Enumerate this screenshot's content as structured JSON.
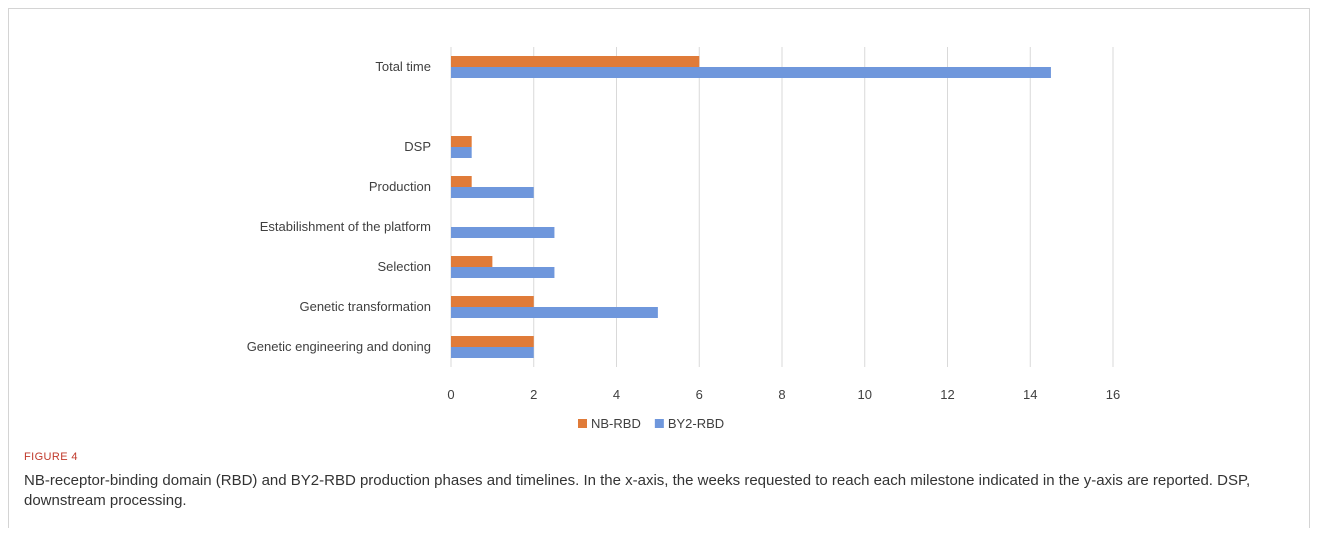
{
  "figure_label": "FIGURE 4",
  "caption": "NB-receptor-binding domain (RBD) and BY2-RBD production phases and timelines. In the x-axis, the weeks requested to reach each milestone indicated in the y-axis are reported. DSP, downstream processing.",
  "chart_data": {
    "type": "bar",
    "orientation": "horizontal",
    "categories": [
      "Total time",
      "",
      "DSP",
      "Production",
      "Estabilishment of the platform",
      "Selection",
      "Genetic transformation",
      "Genetic engineering and cloning"
    ],
    "category_labels": [
      "Total time",
      "",
      "DSP",
      "Production",
      "Estabilishment of the platform",
      "Selection",
      "Genetic transformation",
      "Genetic engineering and doning"
    ],
    "series": [
      {
        "name": "NB-RBD",
        "color": "#e07b39",
        "values": [
          6,
          null,
          0.5,
          0.5,
          0,
          1,
          2,
          2
        ]
      },
      {
        "name": "BY2-RBD",
        "color": "#6f97dc",
        "values": [
          14.5,
          null,
          0.5,
          2,
          2.5,
          2.5,
          5,
          2
        ]
      }
    ],
    "xlim": [
      0,
      16
    ],
    "xticks": [
      0,
      2,
      4,
      6,
      8,
      10,
      12,
      14,
      16
    ],
    "xgrid": true,
    "legend_position": "bottom",
    "title": "",
    "xlabel": "",
    "ylabel": ""
  }
}
